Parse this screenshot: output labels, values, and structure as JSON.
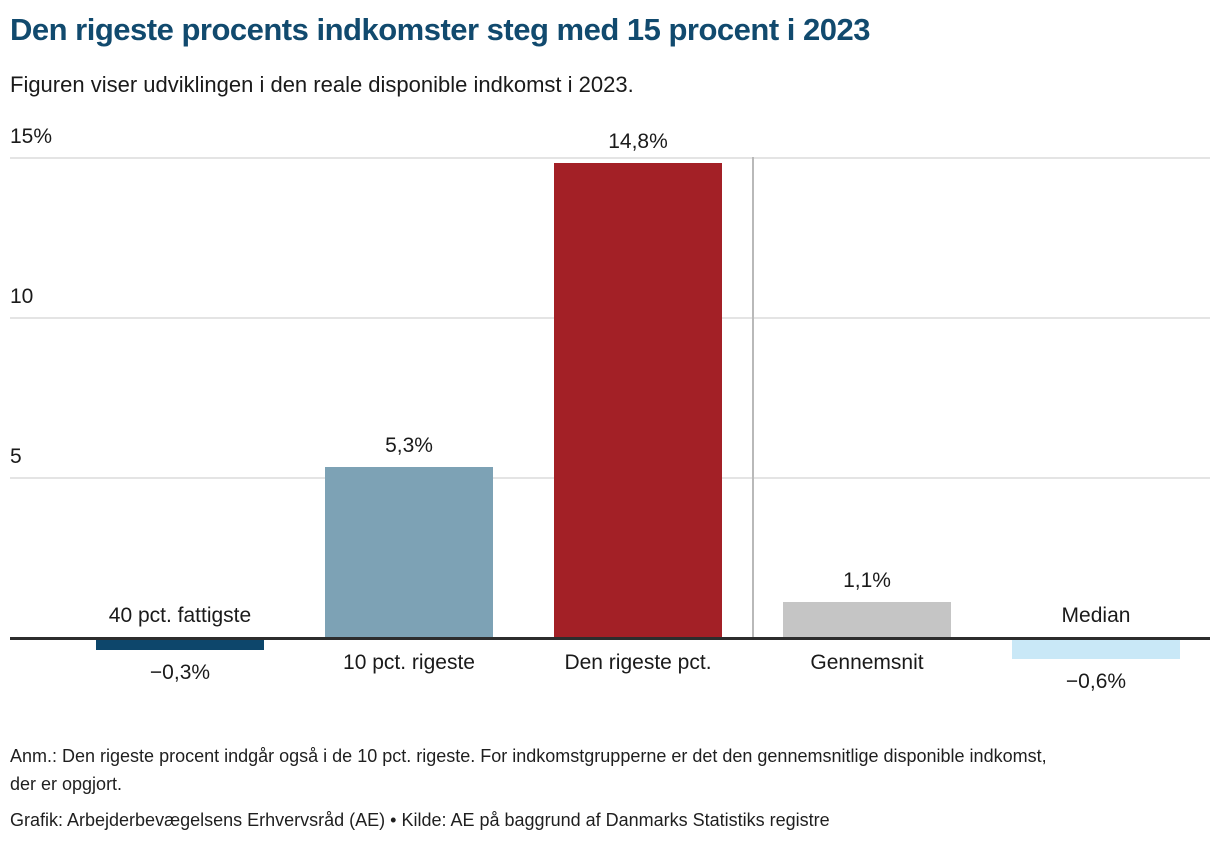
{
  "header": {
    "title": "Den rigeste procents indkomster steg med 15 procent i 2023",
    "subtitle": "Figuren viser udviklingen i den reale disponible indkomst i 2023."
  },
  "chart_data": {
    "type": "bar",
    "title": "Den rigeste procents indkomster steg med 15 procent i 2023",
    "subtitle": "Figuren viser udviklingen i den reale disponible indkomst i 2023.",
    "categories": [
      "40 pct. fattigste",
      "10 pct. rigeste",
      "Den rigeste pct.",
      "Gennemsnit",
      "Median"
    ],
    "values": [
      -0.3,
      5.3,
      14.8,
      1.1,
      -0.6
    ],
    "value_labels": [
      "−0,3%",
      "5,3%",
      "14,8%",
      "1,1%",
      "−0,6%"
    ],
    "bar_colors": [
      "#0d466b",
      "#7da2b5",
      "#a32026",
      "#c5c5c5",
      "#c9e8f7"
    ],
    "y_ticks": [
      {
        "value": 15,
        "label": "15%"
      },
      {
        "value": 10,
        "label": "10"
      },
      {
        "value": 5,
        "label": "5"
      }
    ],
    "ylim": [
      -1,
      15
    ],
    "grid": "horizontal",
    "legend": "none",
    "separator_after_index": 2,
    "xlabel": "",
    "ylabel": ""
  },
  "footer": {
    "note_lines": [
      "Anm.: Den rigeste procent indgår også i de 10 pct. rigeste. For indkomstgrupperne er det den gennemsnitlige disponible indkomst,",
      "der er opgjort."
    ],
    "credit": "Grafik: Arbejderbevægelsens Erhvervsråd (AE) • Kilde: AE på baggrund af Danmarks Statistiks registre"
  },
  "colors": {
    "title_blue": "#114a6e",
    "bar_navy": "#0d466b",
    "bar_steel_blue": "#7da2b5",
    "bar_red": "#a32026",
    "bar_gray": "#c5c5c5",
    "bar_light_blue": "#c9e8f7",
    "gridline": "#e4e4e4",
    "baseline": "#2d2d2d",
    "separator": "#b9b9b9",
    "text": "#1a1a1a"
  }
}
